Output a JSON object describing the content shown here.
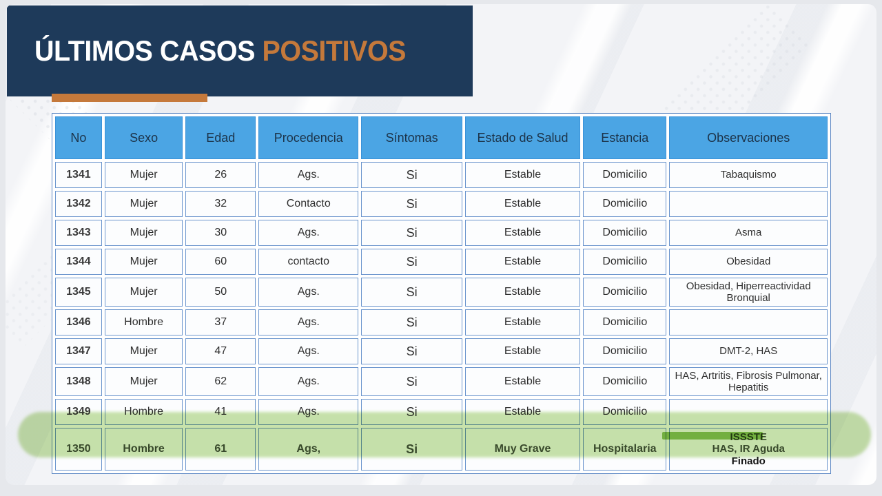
{
  "title": {
    "part1": "ÚLTIMOS CASOS",
    "part2": "POSITIVOS"
  },
  "colors": {
    "navy": "#1e3a5a",
    "orange": "#c5793b",
    "header-blue": "#4ba5e4",
    "header-blue-border": "#3a92d8",
    "header-text": "#1c3349",
    "cell-border": "#6b95cd",
    "table-outer-border": "#5d88c4",
    "marker-green": "#c4e0a4",
    "marker-accent": "#8ec455",
    "hl-text": "#47523f"
  },
  "table": {
    "columns": [
      "No",
      "Sexo",
      "Edad",
      "Procedencia",
      "Síntomas",
      "Estado de Salud",
      "Estancia",
      "Observaciones"
    ],
    "column_widths_pct": [
      6.2,
      10.4,
      9.3,
      13.3,
      13.4,
      15.3,
      11.1,
      21.0
    ],
    "rows": [
      {
        "no": "1341",
        "sexo": "Mujer",
        "edad": "26",
        "procedencia": "Ags.",
        "sintomas": "Si",
        "estado": "Estable",
        "estancia": "Domicilio",
        "observaciones": "Tabaquismo",
        "highlighted": false
      },
      {
        "no": "1342",
        "sexo": "Mujer",
        "edad": "32",
        "procedencia": "Contacto",
        "sintomas": "Si",
        "estado": "Estable",
        "estancia": "Domicilio",
        "observaciones": "",
        "highlighted": false
      },
      {
        "no": "1343",
        "sexo": "Mujer",
        "edad": "30",
        "procedencia": "Ags.",
        "sintomas": "Si",
        "estado": "Estable",
        "estancia": "Domicilio",
        "observaciones": "Asma",
        "highlighted": false
      },
      {
        "no": "1344",
        "sexo": "Mujer",
        "edad": "60",
        "procedencia": "contacto",
        "sintomas": "Si",
        "estado": "Estable",
        "estancia": "Domicilio",
        "observaciones": "Obesidad",
        "highlighted": false
      },
      {
        "no": "1345",
        "sexo": "Mujer",
        "edad": "50",
        "procedencia": "Ags.",
        "sintomas": "Si",
        "estado": "Estable",
        "estancia": "Domicilio",
        "observaciones": "Obesidad, Hiperreactividad Bronquial",
        "highlighted": false,
        "tall": true
      },
      {
        "no": "1346",
        "sexo": "Hombre",
        "edad": "37",
        "procedencia": "Ags.",
        "sintomas": "Si",
        "estado": "Estable",
        "estancia": "Domicilio",
        "observaciones": "",
        "highlighted": false
      },
      {
        "no": "1347",
        "sexo": "Mujer",
        "edad": "47",
        "procedencia": "Ags.",
        "sintomas": "Si",
        "estado": "Estable",
        "estancia": "Domicilio",
        "observaciones": "DMT-2, HAS",
        "highlighted": false
      },
      {
        "no": "1348",
        "sexo": "Mujer",
        "edad": "62",
        "procedencia": "Ags.",
        "sintomas": "Si",
        "estado": "Estable",
        "estancia": "Domicilio",
        "observaciones": "HAS, Artritis, Fibrosis Pulmonar, Hepatitis",
        "highlighted": false,
        "tall": true
      },
      {
        "no": "1349",
        "sexo": "Hombre",
        "edad": "41",
        "procedencia": "Ags.",
        "sintomas": "Si",
        "estado": "Estable",
        "estancia": "Domicilio",
        "observaciones": "",
        "highlighted": false
      },
      {
        "no": "1350",
        "sexo": "Hombre",
        "edad": "61",
        "procedencia": "Ags,",
        "sintomas": "Si",
        "estado": "Muy Grave",
        "estancia": "Hospitalaria",
        "observaciones": [
          "ISSSTE",
          "HAS, IR Aguda",
          "Finado"
        ],
        "highlighted": true
      }
    ]
  }
}
